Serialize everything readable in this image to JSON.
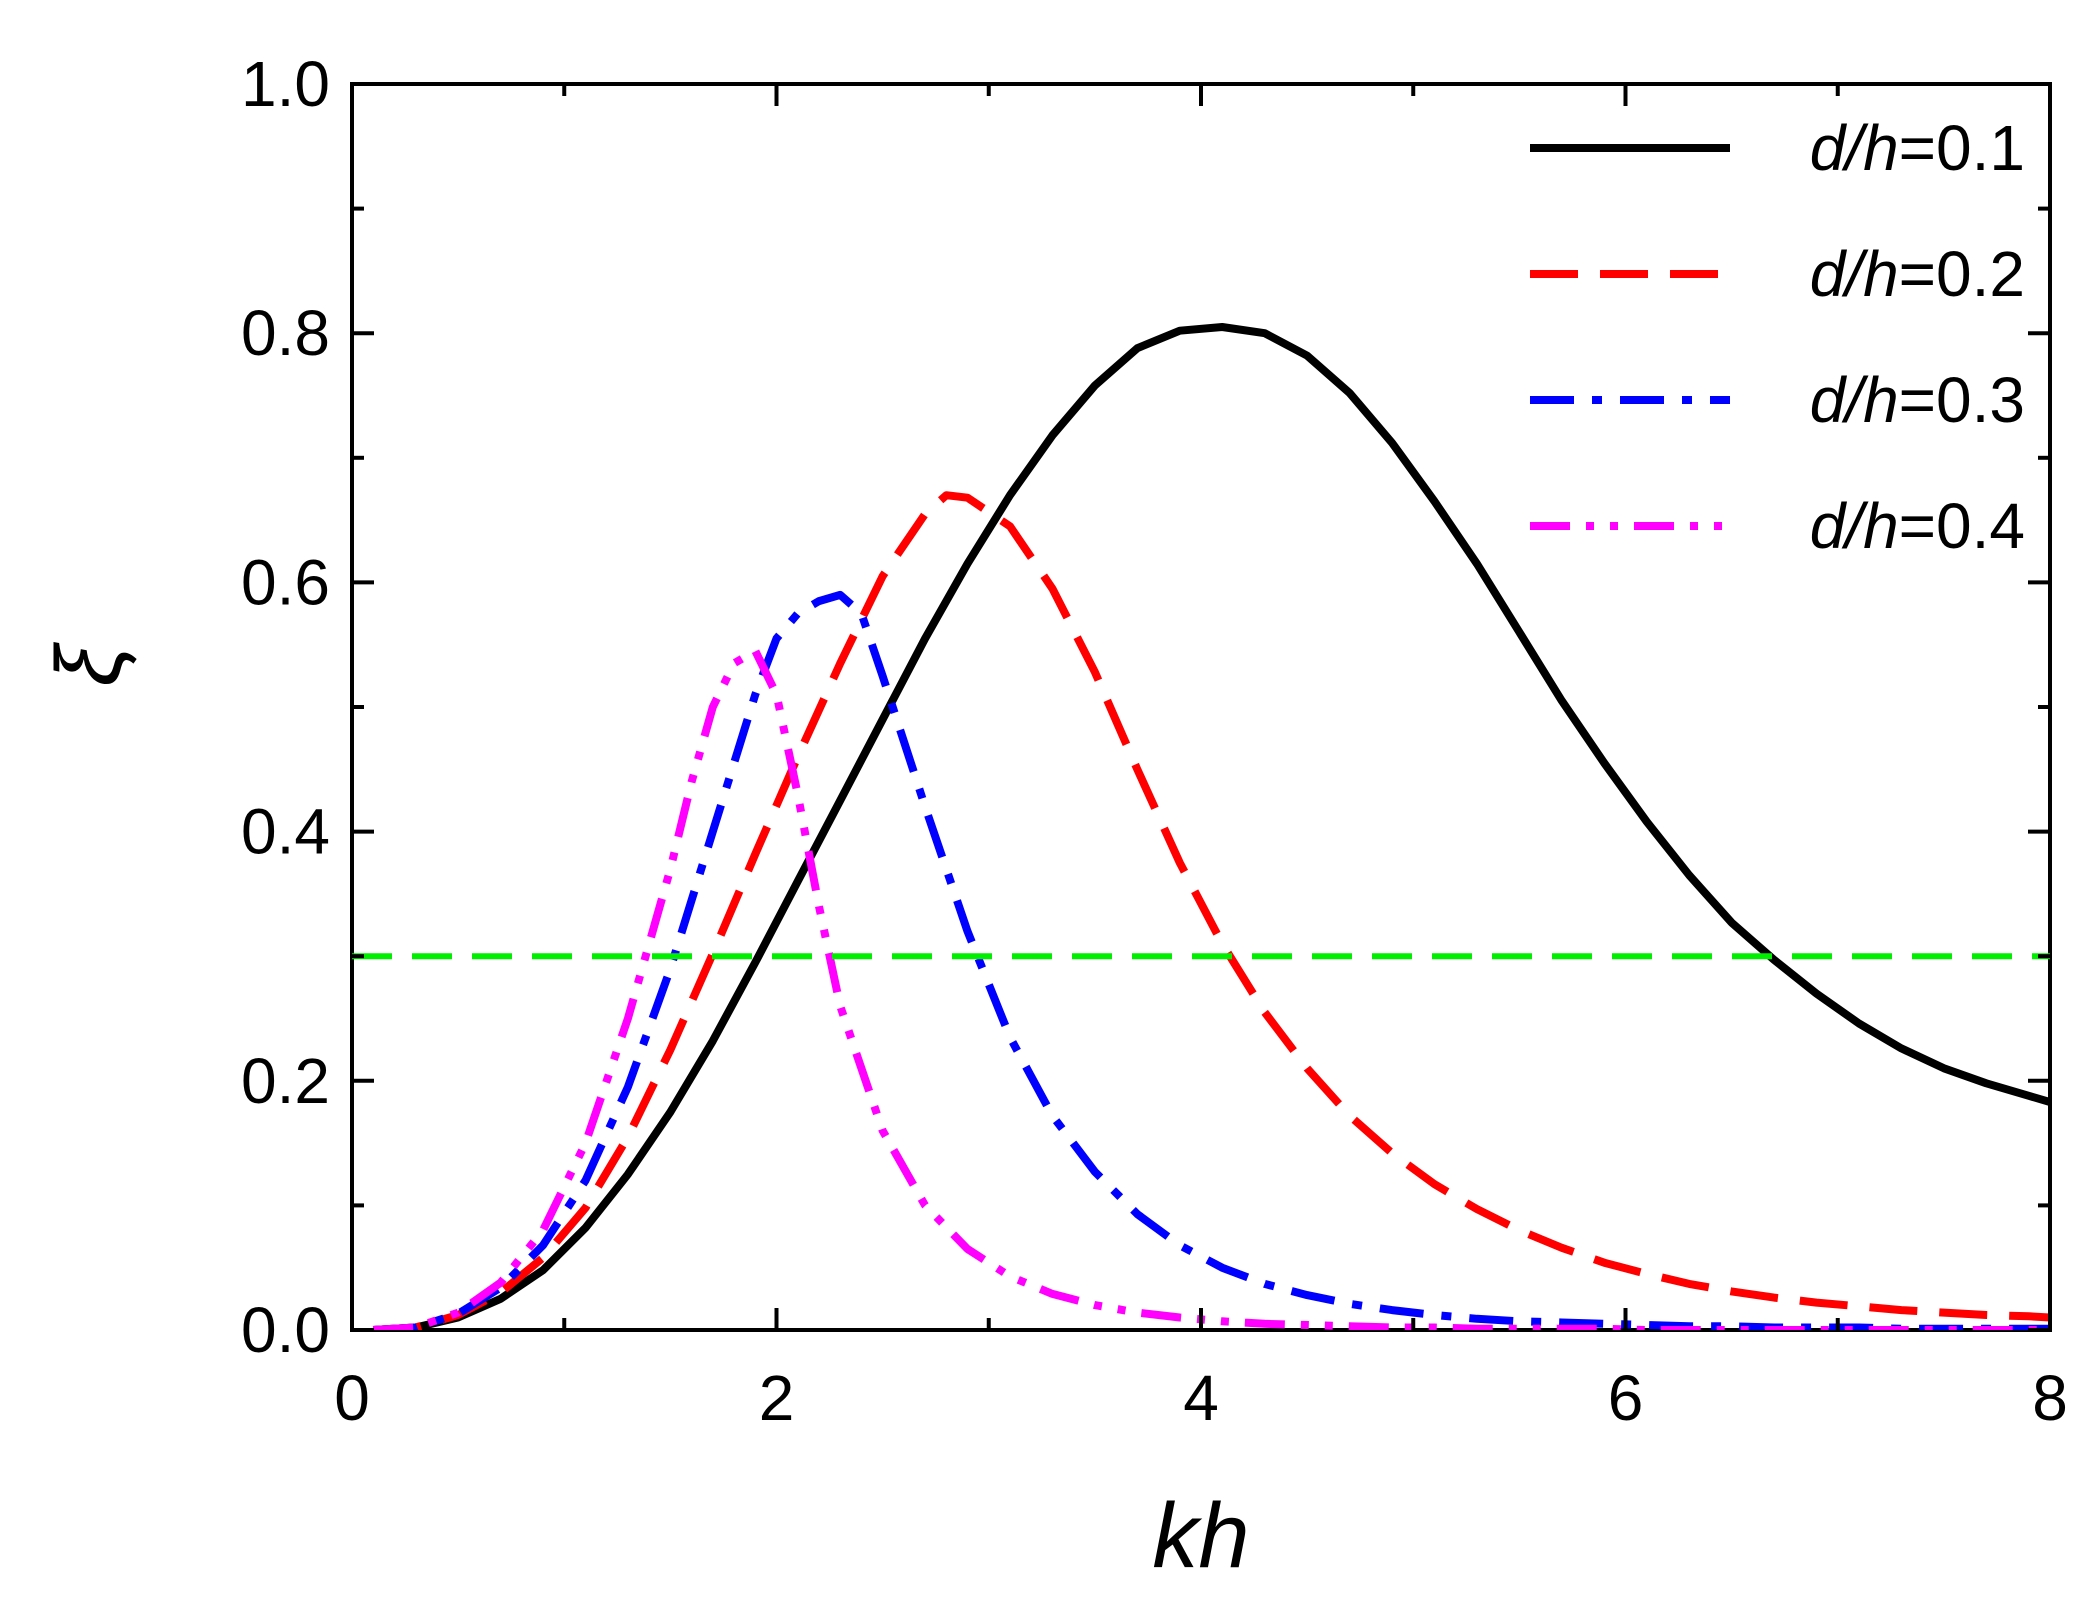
{
  "chart_data": {
    "type": "line",
    "title": "",
    "xlabel": "kh",
    "ylabel": "ξ",
    "xlim": [
      0,
      8
    ],
    "ylim": [
      0,
      1.0
    ],
    "xticks": [
      0,
      2,
      4,
      6,
      8
    ],
    "xtick_labels": [
      "0",
      "2",
      "4",
      "6",
      "8"
    ],
    "yticks": [
      0.0,
      0.2,
      0.4,
      0.6,
      0.8,
      1.0
    ],
    "ytick_labels": [
      "0.0",
      "0.2",
      "0.4",
      "0.6",
      "0.8",
      "1.0"
    ],
    "x_minor_step": 1,
    "y_minor_step": 0.1,
    "grid": false,
    "legend_position": "top-right",
    "reference_line": {
      "y": 0.3,
      "color": "#00ee00",
      "style": "dashed"
    },
    "series": [
      {
        "name": "d/h=0.1",
        "label_parts": {
          "var": "d/h",
          "rest": "=0.1"
        },
        "color": "#000000",
        "style": "solid",
        "x": [
          0.1,
          0.3,
          0.5,
          0.7,
          0.9,
          1.1,
          1.3,
          1.5,
          1.7,
          1.9,
          2.1,
          2.3,
          2.5,
          2.7,
          2.9,
          3.1,
          3.3,
          3.5,
          3.7,
          3.9,
          4.1,
          4.3,
          4.5,
          4.7,
          4.9,
          5.1,
          5.3,
          5.5,
          5.7,
          5.9,
          6.1,
          6.3,
          6.5,
          6.7,
          6.9,
          7.1,
          7.3,
          7.5,
          7.7,
          7.9,
          8.0
        ],
        "y": [
          0.0,
          0.002,
          0.01,
          0.025,
          0.048,
          0.082,
          0.125,
          0.175,
          0.232,
          0.295,
          0.36,
          0.425,
          0.49,
          0.555,
          0.615,
          0.67,
          0.718,
          0.758,
          0.788,
          0.802,
          0.805,
          0.8,
          0.782,
          0.752,
          0.712,
          0.665,
          0.615,
          0.56,
          0.505,
          0.455,
          0.408,
          0.365,
          0.327,
          0.297,
          0.27,
          0.246,
          0.226,
          0.21,
          0.198,
          0.188,
          0.183
        ]
      },
      {
        "name": "d/h=0.2",
        "label_parts": {
          "var": "d/h",
          "rest": "=0.2"
        },
        "color": "#ff0000",
        "style": "dashed",
        "x": [
          0.1,
          0.3,
          0.5,
          0.7,
          0.9,
          1.1,
          1.3,
          1.5,
          1.7,
          1.9,
          2.1,
          2.3,
          2.5,
          2.7,
          2.8,
          2.9,
          3.1,
          3.3,
          3.5,
          3.7,
          3.9,
          4.1,
          4.3,
          4.5,
          4.7,
          4.9,
          5.1,
          5.3,
          5.5,
          5.7,
          5.9,
          6.1,
          6.3,
          6.5,
          6.7,
          6.9,
          7.1,
          7.3,
          7.5,
          7.7,
          7.9,
          8.0
        ],
        "y": [
          0.0,
          0.002,
          0.012,
          0.03,
          0.058,
          0.098,
          0.155,
          0.225,
          0.302,
          0.382,
          0.46,
          0.535,
          0.605,
          0.655,
          0.67,
          0.668,
          0.645,
          0.595,
          0.528,
          0.45,
          0.375,
          0.31,
          0.255,
          0.21,
          0.172,
          0.142,
          0.117,
          0.097,
          0.08,
          0.066,
          0.054,
          0.045,
          0.037,
          0.031,
          0.026,
          0.022,
          0.019,
          0.016,
          0.014,
          0.012,
          0.011,
          0.01
        ]
      },
      {
        "name": "d/h=0.3",
        "label_parts": {
          "var": "d/h",
          "rest": "=0.3"
        },
        "color": "#0000ff",
        "style": "dashdot",
        "x": [
          0.1,
          0.3,
          0.5,
          0.7,
          0.9,
          1.1,
          1.3,
          1.5,
          1.7,
          1.9,
          2.0,
          2.1,
          2.2,
          2.3,
          2.4,
          2.5,
          2.7,
          2.9,
          3.1,
          3.3,
          3.5,
          3.7,
          3.9,
          4.1,
          4.3,
          4.5,
          4.7,
          4.9,
          5.1,
          5.3,
          5.5,
          5.7,
          5.9,
          6.1,
          6.3,
          6.5,
          6.7,
          6.9,
          7.1,
          7.3,
          7.5,
          7.7,
          7.9,
          8.0
        ],
        "y": [
          0.0,
          0.002,
          0.013,
          0.034,
          0.068,
          0.12,
          0.195,
          0.29,
          0.4,
          0.51,
          0.555,
          0.575,
          0.585,
          0.59,
          0.575,
          0.525,
          0.42,
          0.32,
          0.235,
          0.172,
          0.127,
          0.093,
          0.068,
          0.05,
          0.037,
          0.028,
          0.021,
          0.016,
          0.012,
          0.009,
          0.007,
          0.006,
          0.005,
          0.004,
          0.003,
          0.003,
          0.002,
          0.002,
          0.002,
          0.001,
          0.001,
          0.001,
          0.001,
          0.001
        ]
      },
      {
        "name": "d/h=0.4",
        "label_parts": {
          "var": "d/h",
          "rest": "=0.4"
        },
        "color": "#ff00ff",
        "style": "dashdotdot",
        "x": [
          0.1,
          0.3,
          0.5,
          0.7,
          0.9,
          1.1,
          1.3,
          1.5,
          1.6,
          1.7,
          1.8,
          1.9,
          2.0,
          2.1,
          2.2,
          2.3,
          2.5,
          2.7,
          2.9,
          3.1,
          3.3,
          3.5,
          3.7,
          3.9,
          4.1,
          4.3,
          4.5,
          4.7,
          4.9,
          5.1,
          5.3,
          5.5,
          5.7,
          5.9,
          6.1,
          6.3,
          6.5,
          6.7,
          6.9,
          7.1,
          7.3,
          7.5,
          7.7,
          7.9,
          8.0
        ],
        "y": [
          0.0,
          0.002,
          0.014,
          0.038,
          0.08,
          0.15,
          0.25,
          0.37,
          0.44,
          0.5,
          0.535,
          0.545,
          0.51,
          0.43,
          0.34,
          0.26,
          0.16,
          0.1,
          0.065,
          0.043,
          0.029,
          0.02,
          0.014,
          0.01,
          0.007,
          0.005,
          0.004,
          0.003,
          0.002,
          0.002,
          0.001,
          0.001,
          0.001,
          0.001,
          0.0,
          0.0,
          0.0,
          0.0,
          0.0,
          0.0,
          0.0,
          0.0,
          0.0,
          0.0,
          0.0
        ]
      }
    ]
  }
}
